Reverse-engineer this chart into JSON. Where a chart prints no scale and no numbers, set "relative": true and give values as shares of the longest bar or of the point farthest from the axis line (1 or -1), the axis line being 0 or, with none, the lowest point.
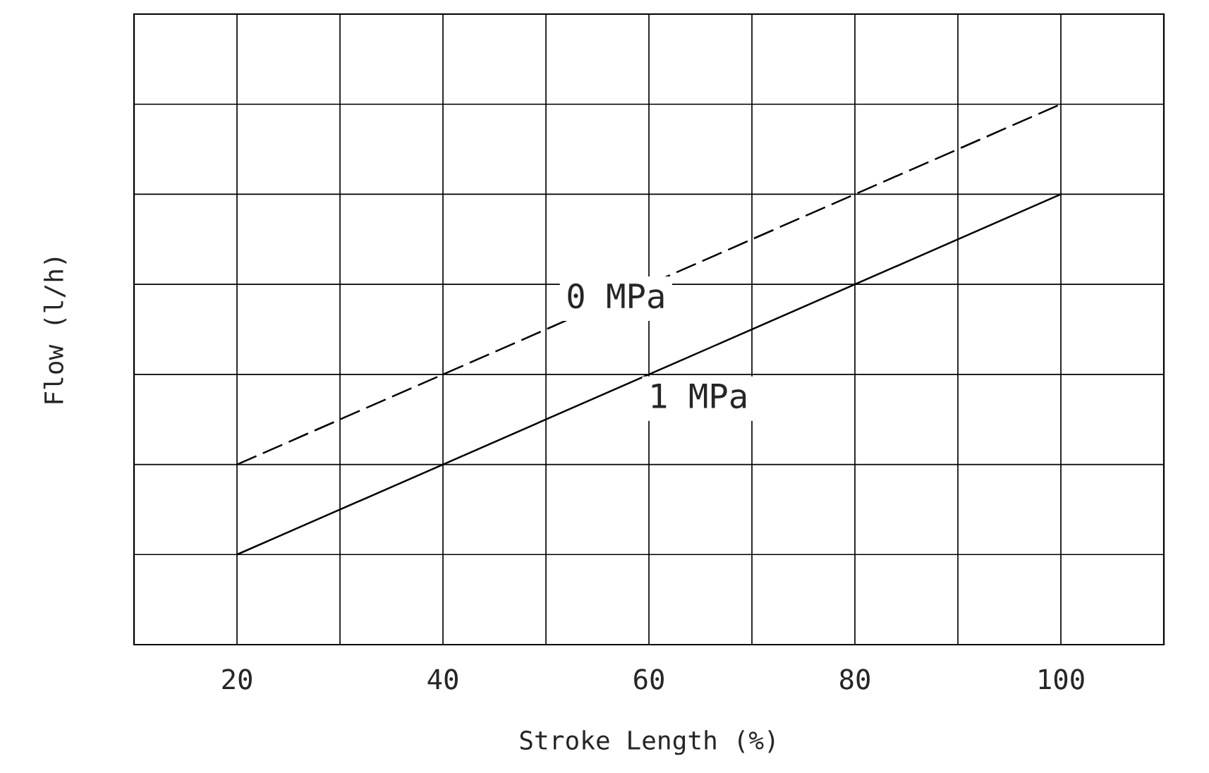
{
  "chart_data": {
    "type": "line",
    "relative": true,
    "xlabel": "Stroke Length (%)",
    "ylabel": "Flow (l/h)",
    "x": [
      20,
      100
    ],
    "series": [
      {
        "name": "0 MPa",
        "color": "#000000",
        "values": [
          0.3333,
          1.0
        ],
        "line_style": "dashed"
      },
      {
        "name": "1 MPa",
        "color": "#000000",
        "values": [
          0.1667,
          0.8333
        ],
        "line_style": "solid"
      }
    ],
    "xlim": [
      10,
      110
    ],
    "xticks": [
      20,
      {
        "value": 30,
        "label": null
      },
      40,
      {
        "value": 50,
        "label": null
      },
      60,
      {
        "value": 70,
        "label": null
      },
      80,
      {
        "value": 90,
        "label": null
      },
      100
    ],
    "grid": true,
    "marker": "none",
    "legend": false
  }
}
